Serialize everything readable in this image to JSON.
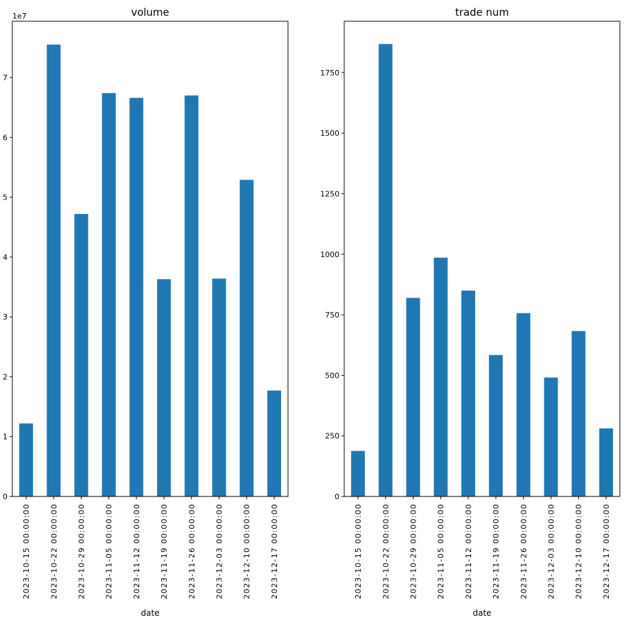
{
  "chart_data": [
    {
      "type": "bar",
      "title": "volume",
      "xlabel": "date",
      "ylabel": "",
      "y_offset_label": "1e7",
      "categories": [
        "2023-10-15 00:00:00",
        "2023-10-22 00:00:00",
        "2023-10-29 00:00:00",
        "2023-11-05 00:00:00",
        "2023-11-12 00:00:00",
        "2023-11-19 00:00:00",
        "2023-11-26 00:00:00",
        "2023-12-03 00:00:00",
        "2023-12-10 00:00:00",
        "2023-12-17 00:00:00"
      ],
      "values": [
        12200000,
        75500000,
        47200000,
        67400000,
        66600000,
        36300000,
        67000000,
        36400000,
        52900000,
        17700000
      ],
      "ylim": [
        0,
        79400000
      ],
      "yticks": [
        0,
        10000000,
        20000000,
        30000000,
        40000000,
        50000000,
        60000000,
        70000000
      ],
      "ytick_labels": [
        "0",
        "1",
        "2",
        "3",
        "4",
        "5",
        "6",
        "7"
      ],
      "color": "#1f77b4",
      "grid": false,
      "legend": false
    },
    {
      "type": "bar",
      "title": "trade num",
      "xlabel": "date",
      "ylabel": "",
      "categories": [
        "2023-10-15 00:00:00",
        "2023-10-22 00:00:00",
        "2023-10-29 00:00:00",
        "2023-11-05 00:00:00",
        "2023-11-12 00:00:00",
        "2023-11-19 00:00:00",
        "2023-11-26 00:00:00",
        "2023-12-03 00:00:00",
        "2023-12-10 00:00:00",
        "2023-12-17 00:00:00"
      ],
      "values": [
        188,
        1868,
        820,
        986,
        850,
        584,
        757,
        491,
        683,
        281
      ],
      "ylim": [
        0,
        1962
      ],
      "yticks": [
        0,
        250,
        500,
        750,
        1000,
        1250,
        1500,
        1750
      ],
      "ytick_labels": [
        "0",
        "250",
        "500",
        "750",
        "1000",
        "1250",
        "1500",
        "1750"
      ],
      "color": "#1f77b4",
      "grid": false,
      "legend": false
    }
  ]
}
